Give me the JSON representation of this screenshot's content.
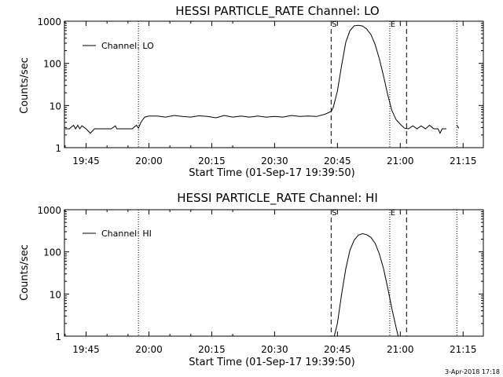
{
  "chart_data": [
    {
      "type": "line",
      "title": "HESSI PARTICLE_RATE Channel: LO",
      "xlabel": "Start Time (01-Sep-17 19:39:50)",
      "ylabel": "Counts/sec",
      "yscale": "log",
      "ylim": [
        1,
        1000
      ],
      "xlim": [
        "19:39:50",
        "21:19:50"
      ],
      "x_tick_labels": [
        "19:45",
        "20:00",
        "20:15",
        "20:30",
        "20:45",
        "21:00",
        "21:15"
      ],
      "y_tick_labels": [
        "1",
        "10",
        "100",
        "1000"
      ],
      "legend": {
        "entries": [
          "Channel: LO"
        ],
        "position": "top-left"
      },
      "markers": [
        {
          "time": "19:57:30",
          "style": "dotted",
          "label": ""
        },
        {
          "time": "20:43:30",
          "style": "dashed",
          "label": "S"
        },
        {
          "time": "20:57:30",
          "style": "dotted",
          "label": "E"
        },
        {
          "time": "21:01:30",
          "style": "dashed",
          "label": ""
        },
        {
          "time": "21:13:30",
          "style": "dotted",
          "label": ""
        }
      ],
      "series": [
        {
          "name": "Channel: LO",
          "segments": [
            {
              "x": [
                "19:40:00",
                "19:41:00",
                "19:42:00",
                "19:42:30",
                "19:43:00",
                "19:43:30",
                "19:44:00",
                "19:45:00",
                "19:46:00",
                "19:47:00",
                "19:47:30",
                "19:48:00",
                "19:49:00",
                "19:50:00",
                "19:51:00",
                "19:52:00",
                "19:52:20",
                "19:53:00",
                "19:54:00",
                "19:55:00",
                "19:56:00",
                "19:57:00",
                "19:57:30",
                "19:58:00",
                "19:58:30",
                "19:59:00",
                "20:00:00",
                "20:02:00",
                "20:04:00",
                "20:06:00",
                "20:08:00",
                "20:10:00",
                "20:12:00",
                "20:14:00",
                "20:16:00",
                "20:18:00",
                "20:20:00",
                "20:22:00",
                "20:24:00",
                "20:26:00",
                "20:28:00",
                "20:30:00",
                "20:32:00",
                "20:34:00",
                "20:36:00",
                "20:38:00",
                "20:40:00",
                "20:42:00",
                "20:43:30",
                "20:44:00",
                "20:45:00",
                "20:46:00",
                "20:47:00",
                "20:48:00",
                "20:49:00",
                "20:50:00",
                "20:51:00",
                "20:52:00",
                "20:53:00",
                "20:54:00",
                "20:55:00",
                "20:56:00",
                "20:57:00",
                "20:58:00",
                "20:59:00",
                "21:00:00",
                "21:01:00",
                "21:02:00",
                "21:03:00",
                "21:04:00",
                "21:05:00",
                "21:06:00",
                "21:07:00",
                "21:08:00",
                "21:09:00",
                "21:09:30",
                "21:10:00",
                "21:11:00"
              ],
              "y": [
                2.8,
                2.8,
                3.4,
                2.8,
                3.4,
                2.8,
                3.3,
                2.8,
                2.2,
                2.8,
                2.8,
                2.8,
                2.8,
                2.8,
                2.8,
                3.3,
                2.8,
                2.8,
                2.8,
                2.8,
                2.8,
                3.4,
                2.9,
                3.8,
                4.6,
                5.3,
                5.6,
                5.6,
                5.3,
                5.8,
                5.5,
                5.3,
                5.7,
                5.5,
                5.1,
                5.8,
                5.3,
                5.6,
                5.3,
                5.6,
                5.3,
                5.5,
                5.3,
                5.8,
                5.5,
                5.6,
                5.5,
                6.2,
                7.2,
                9,
                22,
                90,
                320,
                600,
                780,
                800,
                770,
                650,
                480,
                280,
                130,
                50,
                18,
                7.6,
                4.6,
                3.6,
                2.9,
                2.8,
                3.3,
                2.8,
                3.3,
                2.8,
                3.4,
                2.8,
                2.8,
                2.2,
                2.8,
                2.8
              ]
            },
            {
              "x": [
                "21:13:30",
                "21:14:00"
              ],
              "y": [
                3.4,
                2.9
              ]
            }
          ]
        }
      ]
    },
    {
      "type": "line",
      "title": "HESSI PARTICLE_RATE Channel: HI",
      "xlabel": "Start Time (01-Sep-17 19:39:50)",
      "ylabel": "Counts/sec",
      "yscale": "log",
      "ylim": [
        1,
        1000
      ],
      "xlim": [
        "19:39:50",
        "21:19:50"
      ],
      "x_tick_labels": [
        "19:45",
        "20:00",
        "20:15",
        "20:30",
        "20:45",
        "21:00",
        "21:15"
      ],
      "y_tick_labels": [
        "1",
        "10",
        "100",
        "1000"
      ],
      "legend": {
        "entries": [
          "Channel: HI"
        ],
        "position": "top-left"
      },
      "markers": [
        {
          "time": "19:57:30",
          "style": "dotted",
          "label": ""
        },
        {
          "time": "20:43:30",
          "style": "dashed",
          "label": "S"
        },
        {
          "time": "20:57:30",
          "style": "dotted",
          "label": "E"
        },
        {
          "time": "21:01:30",
          "style": "dashed",
          "label": ""
        },
        {
          "time": "21:13:30",
          "style": "dotted",
          "label": ""
        }
      ],
      "series": [
        {
          "name": "Channel: HI",
          "segments": [
            {
              "x": [
                "20:44:15",
                "20:45:00",
                "20:46:00",
                "20:47:00",
                "20:48:00",
                "20:49:00",
                "20:50:00",
                "20:51:00",
                "20:52:00",
                "20:53:00",
                "20:54:00",
                "20:55:00",
                "20:56:00",
                "20:57:00",
                "20:58:00",
                "20:59:00",
                "20:59:30"
              ],
              "y": [
                1,
                2,
                10,
                40,
                110,
                190,
                250,
                270,
                255,
                220,
                160,
                90,
                40,
                14,
                4.5,
                1.6,
                1
              ]
            }
          ]
        }
      ]
    }
  ],
  "footer": {
    "date_stamp": "3-Apr-2018 17:18"
  }
}
